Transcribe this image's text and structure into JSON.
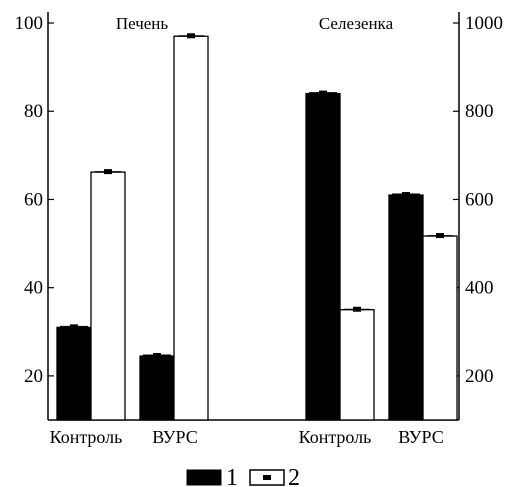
{
  "chart_data": {
    "type": "bar",
    "panels": [
      {
        "title": "Печень",
        "categories": [
          "Контроль",
          "ВУРС"
        ],
        "series": [
          {
            "legend": "1",
            "values": [
              31,
              24.5
            ],
            "axis": "left",
            "color": "#000000"
          },
          {
            "legend": "2",
            "values": [
              66.2,
              97
            ],
            "axis": "left",
            "color": "#ffffff"
          }
        ]
      },
      {
        "title": "Селезенка",
        "categories": [
          "Контроль",
          "ВУРС"
        ],
        "series": [
          {
            "legend": "1",
            "values": [
              84,
              61
            ],
            "axis": "left",
            "color": "#000000"
          },
          {
            "legend": "2",
            "values": [
              350,
              517
            ],
            "axis": "right",
            "color": "#ffffff"
          }
        ]
      }
    ],
    "left_axis": {
      "ylim": [
        10,
        102.5
      ],
      "ticks": [
        20,
        40,
        60,
        80,
        100
      ]
    },
    "right_axis": {
      "ylim": [
        100,
        1025
      ],
      "ticks": [
        200,
        400,
        600,
        800,
        1000
      ]
    },
    "legend": [
      {
        "label": "1",
        "style": "filled-black"
      },
      {
        "label": "2",
        "style": "open-with-dot"
      }
    ],
    "legend_position": "bottom-center",
    "grid": false
  }
}
